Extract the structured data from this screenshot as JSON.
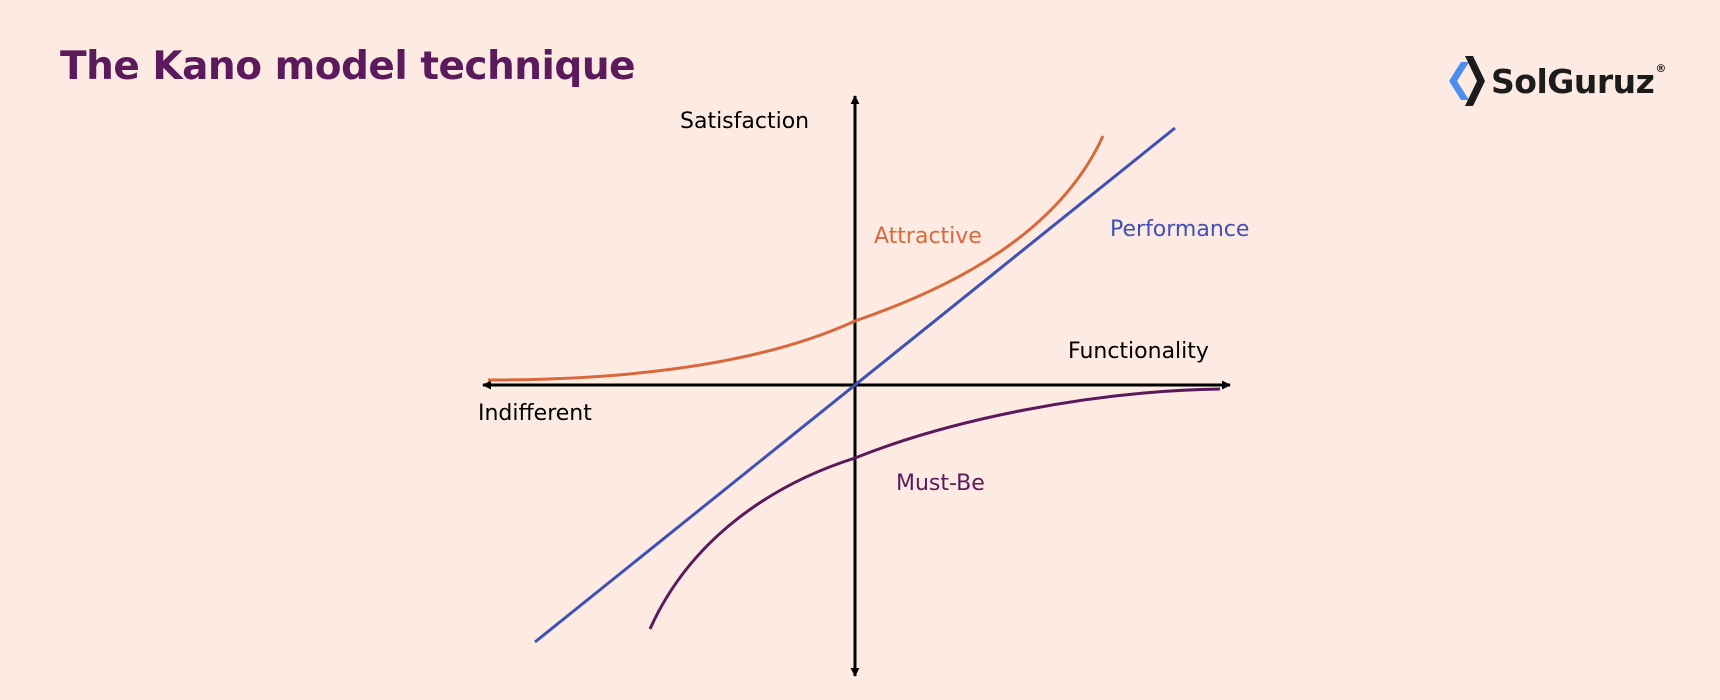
{
  "page": {
    "title": "The Kano model technique",
    "background": "#fdeae2",
    "title_color": "#5a1a5c"
  },
  "logo": {
    "text": "SolGuruz",
    "registered_mark": "®",
    "icon": "solguruz-chevron-icon",
    "icon_colors": [
      "#4a8ff0",
      "#1c1c1c"
    ],
    "text_color": "#1c1c1c"
  },
  "diagram": {
    "axis_labels": {
      "vertical_top": "Satisfaction",
      "horizontal_right": "Functionality",
      "horizontal_left": "Indifferent"
    },
    "curves": [
      {
        "id": "attractive",
        "label": "Attractive",
        "color": "#d9693b"
      },
      {
        "id": "performance",
        "label": "Performance",
        "color": "#3f51b5"
      },
      {
        "id": "must-be",
        "label": "Must-Be",
        "color": "#5a1a5c"
      }
    ],
    "axis_color": "#000000"
  }
}
